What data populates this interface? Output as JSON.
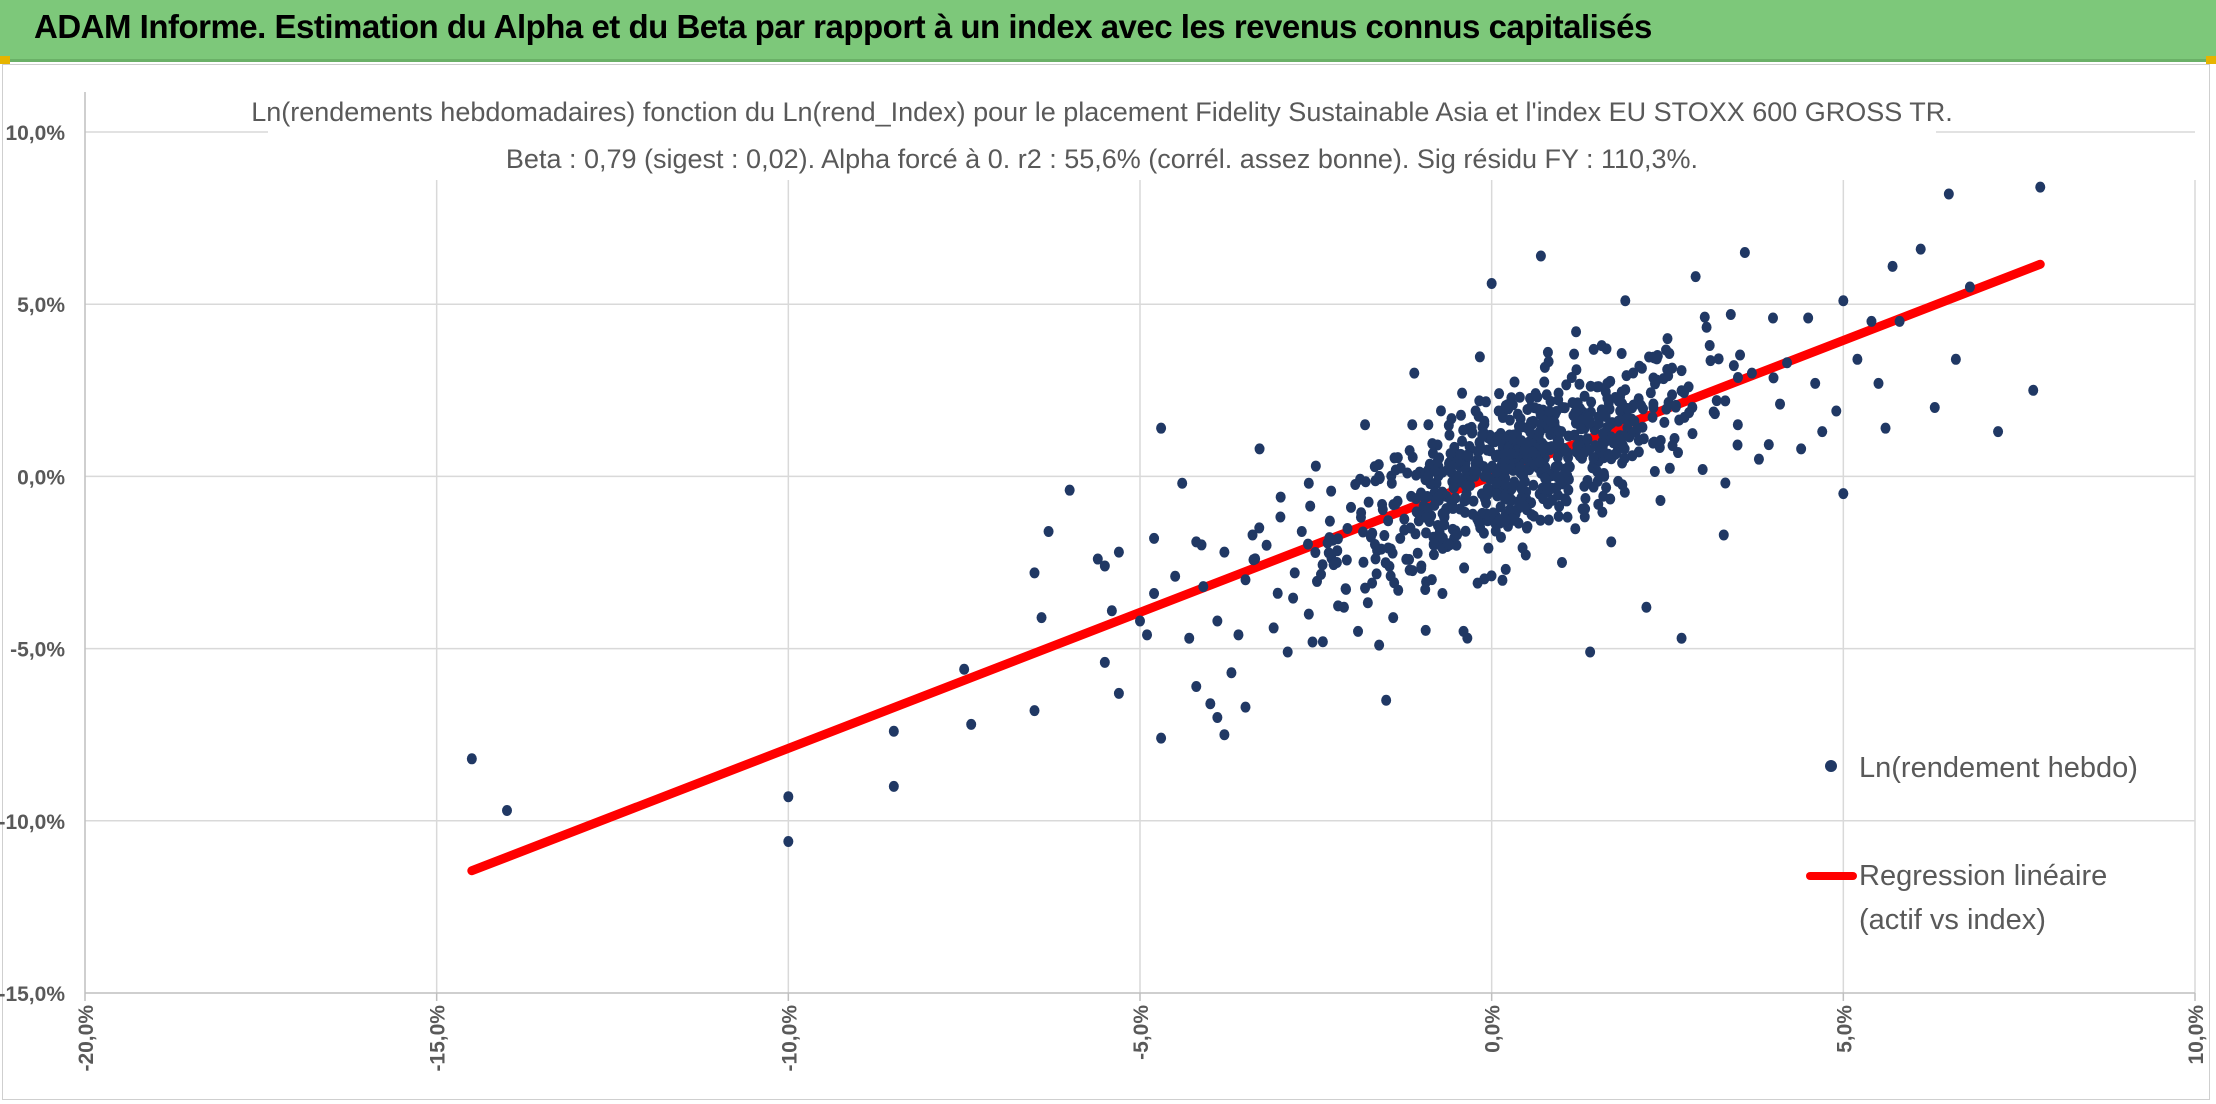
{
  "header": {
    "title": "ADAM Informe. Estimation du Alpha et du Beta par rapport à un index avec les revenus connus capitalisés"
  },
  "colors": {
    "header_bg": "#7dc87a",
    "points": "#203864",
    "regression": "#ff0000",
    "grid": "#d9d9d9",
    "text": "#595959"
  },
  "chart_data": {
    "type": "scatter",
    "title": "Ln(rendements hebdomadaires) fonction du Ln(rend_Index) pour le placement Fidelity Sustainable Asia et l'index EU STOXX 600 GROSS TR.",
    "subtitle": "Beta : 0,79 (sigest : 0,02). Alpha forcé à 0. r2 : 55,6% (corrél. assez bonne). Sig résidu FY : 110,3%.",
    "xlim": [
      -0.2,
      0.1
    ],
    "ylim": [
      -0.15,
      0.1
    ],
    "x_ticks": [
      -0.2,
      -0.15,
      -0.1,
      -0.05,
      0.0,
      0.05,
      0.1
    ],
    "y_ticks": [
      -0.15,
      -0.1,
      -0.05,
      0.0,
      0.05,
      0.1
    ],
    "x_tick_labels": [
      "-20,0%",
      "-15,0%",
      "-10,0%",
      "-5,0%",
      "0,0%",
      "5,0%",
      "10,0%"
    ],
    "y_tick_labels": [
      "-15,0%",
      "-10,0%",
      "-5,0%",
      "0,0%",
      "5,0%",
      "10,0%"
    ],
    "grid": true,
    "legend_position": "right",
    "beta": 0.79,
    "alpha": 0,
    "series": [
      {
        "name": "Ln(rendement hebdo)",
        "type": "scatter",
        "points": [
          [
            -0.145,
            -0.082
          ],
          [
            -0.14,
            -0.097
          ],
          [
            -0.1,
            -0.093
          ],
          [
            -0.1,
            -0.106
          ],
          [
            -0.085,
            -0.074
          ],
          [
            -0.085,
            -0.09
          ],
          [
            -0.075,
            -0.056
          ],
          [
            -0.074,
            -0.072
          ],
          [
            -0.065,
            -0.028
          ],
          [
            -0.065,
            -0.068
          ],
          [
            -0.064,
            -0.041
          ],
          [
            -0.063,
            -0.016
          ],
          [
            -0.06,
            -0.004
          ],
          [
            -0.056,
            -0.024
          ],
          [
            -0.055,
            -0.026
          ],
          [
            -0.055,
            -0.054
          ],
          [
            -0.054,
            -0.039
          ],
          [
            -0.053,
            -0.022
          ],
          [
            -0.053,
            -0.063
          ],
          [
            -0.05,
            -0.042
          ],
          [
            -0.049,
            -0.046
          ],
          [
            -0.048,
            -0.034
          ],
          [
            -0.048,
            -0.018
          ],
          [
            -0.047,
            0.014
          ],
          [
            -0.047,
            -0.076
          ],
          [
            -0.045,
            -0.029
          ],
          [
            -0.044,
            -0.002
          ],
          [
            -0.043,
            -0.047
          ],
          [
            -0.042,
            -0.019
          ],
          [
            -0.042,
            -0.061
          ],
          [
            -0.041,
            -0.032
          ],
          [
            -0.04,
            -0.066
          ],
          [
            -0.039,
            -0.042
          ],
          [
            -0.039,
            -0.07
          ],
          [
            -0.038,
            -0.022
          ],
          [
            -0.038,
            -0.075
          ],
          [
            -0.037,
            -0.057
          ],
          [
            -0.036,
            -0.046
          ],
          [
            -0.035,
            -0.03
          ],
          [
            -0.035,
            -0.067
          ],
          [
            -0.034,
            -0.017
          ],
          [
            -0.033,
            0.008
          ],
          [
            -0.032,
            -0.02
          ],
          [
            -0.031,
            -0.044
          ],
          [
            -0.03,
            -0.006
          ],
          [
            -0.029,
            -0.051
          ],
          [
            -0.028,
            -0.028
          ],
          [
            -0.027,
            -0.016
          ],
          [
            -0.026,
            -0.04
          ],
          [
            -0.026,
            -0.002
          ],
          [
            -0.025,
            0.003
          ],
          [
            -0.024,
            -0.048
          ],
          [
            -0.023,
            -0.013
          ],
          [
            -0.022,
            -0.025
          ],
          [
            -0.021,
            -0.038
          ],
          [
            -0.02,
            -0.009
          ],
          [
            -0.019,
            -0.045
          ],
          [
            -0.018,
            0.015
          ],
          [
            -0.017,
            -0.031
          ],
          [
            -0.016,
            0.0
          ],
          [
            -0.016,
            -0.049
          ],
          [
            -0.015,
            -0.065
          ],
          [
            -0.014,
            -0.041
          ],
          [
            -0.013,
            -0.018
          ],
          [
            -0.012,
            0.001
          ],
          [
            -0.011,
            0.03
          ],
          [
            -0.01,
            -0.026
          ],
          [
            -0.009,
            0.015
          ],
          [
            -0.008,
            -0.002
          ],
          [
            -0.007,
            -0.034
          ],
          [
            -0.006,
            0.012
          ],
          [
            -0.005,
            -0.02
          ],
          [
            -0.004,
            -0.045
          ],
          [
            -0.003,
            0.008
          ],
          [
            -0.002,
            -0.031
          ],
          [
            -0.001,
            0.0
          ],
          [
            0.0,
            0.056
          ],
          [
            0.0,
            -0.012
          ],
          [
            0.001,
            0.019
          ],
          [
            0.002,
            -0.027
          ],
          [
            0.003,
            0.005
          ],
          [
            0.004,
            0.023
          ],
          [
            0.005,
            -0.015
          ],
          [
            0.006,
            0.01
          ],
          [
            0.007,
            0.064
          ],
          [
            0.008,
            0.036
          ],
          [
            0.008,
            -0.008
          ],
          [
            0.009,
            0.018
          ],
          [
            0.01,
            -0.025
          ],
          [
            0.011,
            0.003
          ],
          [
            0.012,
            0.042
          ],
          [
            0.013,
            0.009
          ],
          [
            0.014,
            -0.051
          ],
          [
            0.015,
            0.026
          ],
          [
            0.016,
            0.0
          ],
          [
            0.017,
            -0.019
          ],
          [
            0.018,
            0.016
          ],
          [
            0.019,
            0.051
          ],
          [
            0.02,
            0.006
          ],
          [
            0.021,
            0.032
          ],
          [
            0.022,
            -0.038
          ],
          [
            0.023,
            0.02
          ],
          [
            0.024,
            -0.007
          ],
          [
            0.025,
            0.04
          ],
          [
            0.026,
            0.011
          ],
          [
            0.027,
            -0.047
          ],
          [
            0.028,
            0.026
          ],
          [
            0.029,
            0.058
          ],
          [
            0.03,
            0.002
          ],
          [
            0.031,
            0.038
          ],
          [
            0.032,
            0.022
          ],
          [
            0.033,
            -0.017
          ],
          [
            0.034,
            0.047
          ],
          [
            0.035,
            0.015
          ],
          [
            0.036,
            0.065
          ],
          [
            0.037,
            0.03
          ],
          [
            0.038,
            0.005
          ],
          [
            0.04,
            0.046
          ],
          [
            0.041,
            0.021
          ],
          [
            0.042,
            0.033
          ],
          [
            0.044,
            0.008
          ],
          [
            0.045,
            0.046
          ],
          [
            0.046,
            0.027
          ],
          [
            0.047,
            0.013
          ],
          [
            0.049,
            0.019
          ],
          [
            0.05,
            0.051
          ],
          [
            0.05,
            -0.005
          ],
          [
            0.052,
            0.034
          ],
          [
            0.054,
            0.045
          ],
          [
            0.055,
            0.027
          ],
          [
            0.056,
            0.014
          ],
          [
            0.057,
            0.061
          ],
          [
            0.058,
            0.045
          ],
          [
            0.061,
            0.066
          ],
          [
            0.063,
            0.02
          ],
          [
            0.065,
            0.082
          ],
          [
            0.066,
            0.034
          ],
          [
            0.068,
            0.055
          ],
          [
            0.072,
            0.013
          ],
          [
            0.077,
            0.025
          ],
          [
            0.078,
            0.084
          ]
        ]
      },
      {
        "name": "Regression linéaire (actif vs index)",
        "type": "line",
        "points": [
          [
            -0.145,
            -0.1145
          ],
          [
            0.078,
            0.0616
          ]
        ]
      }
    ],
    "legend": [
      {
        "label": "Ln(rendement hebdo)",
        "marker": "dot"
      },
      {
        "label_lines": [
          "Regression linéaire",
          "(actif vs index)"
        ],
        "marker": "line"
      }
    ]
  }
}
